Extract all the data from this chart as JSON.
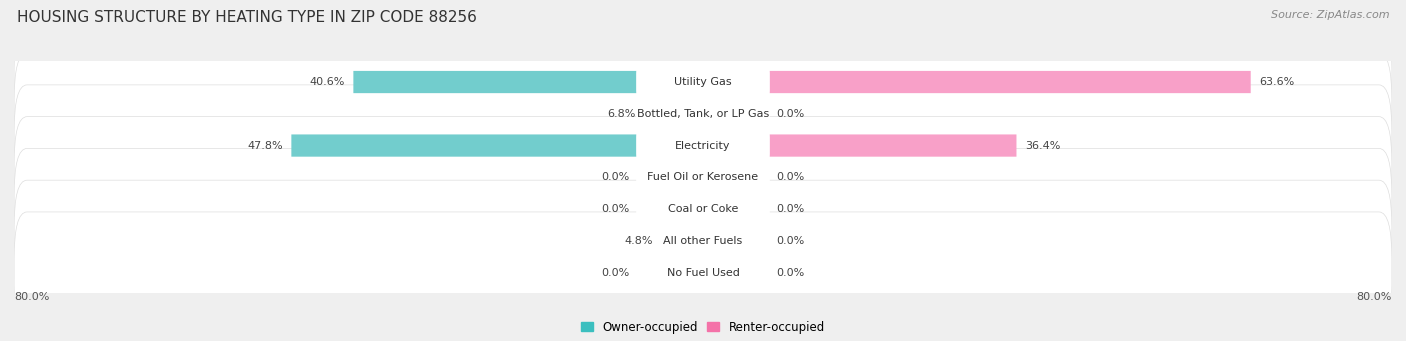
{
  "title": "HOUSING STRUCTURE BY HEATING TYPE IN ZIP CODE 88256",
  "source": "Source: ZipAtlas.com",
  "categories": [
    "Utility Gas",
    "Bottled, Tank, or LP Gas",
    "Electricity",
    "Fuel Oil or Kerosene",
    "Coal or Coke",
    "All other Fuels",
    "No Fuel Used"
  ],
  "owner_values": [
    40.6,
    6.8,
    47.8,
    0.0,
    0.0,
    4.8,
    0.0
  ],
  "renter_values": [
    63.6,
    0.0,
    36.4,
    0.0,
    0.0,
    0.0,
    0.0
  ],
  "owner_color": "#3BBFBF",
  "renter_color": "#F472A8",
  "owner_color_light": "#72CDCD",
  "renter_color_light": "#F8A0C8",
  "axis_max": 80.0,
  "axis_label_left": "80.0%",
  "axis_label_right": "80.0%",
  "background_color": "#EFEFEF",
  "row_bg_color": "#FFFFFF",
  "row_border_color": "#DDDDDD",
  "title_fontsize": 11,
  "source_fontsize": 8,
  "label_fontsize": 8,
  "category_fontsize": 8,
  "legend_fontsize": 8.5
}
